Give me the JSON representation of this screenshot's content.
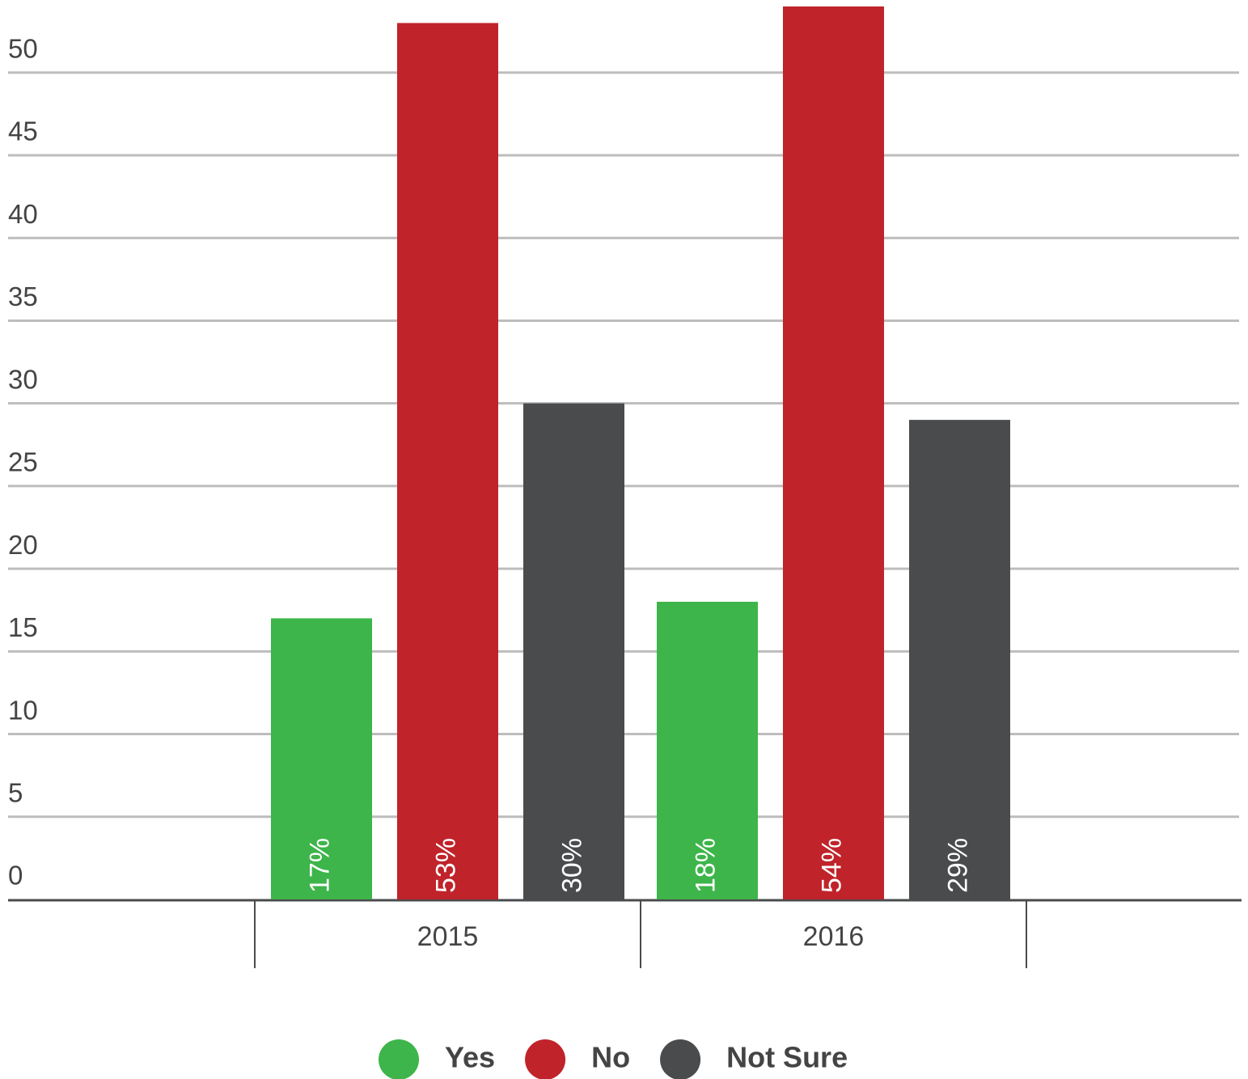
{
  "chart_data": {
    "type": "bar",
    "categories": [
      "2015",
      "2016"
    ],
    "series": [
      {
        "name": "Yes",
        "color": "#3db54a",
        "values": [
          17,
          18
        ],
        "value_labels": [
          "17%",
          "18%"
        ]
      },
      {
        "name": "No",
        "color": "#c0232a",
        "values": [
          53,
          54
        ],
        "value_labels": [
          "53%",
          "54%"
        ]
      },
      {
        "name": "Not Sure",
        "color": "#4a4b4d",
        "values": [
          30,
          29
        ],
        "value_labels": [
          "30%",
          "29%"
        ]
      }
    ],
    "ylim": [
      0,
      54
    ],
    "yticks": [
      0,
      5,
      10,
      15,
      20,
      25,
      30,
      35,
      40,
      45,
      50
    ],
    "grid": true,
    "legend": "bottom"
  }
}
